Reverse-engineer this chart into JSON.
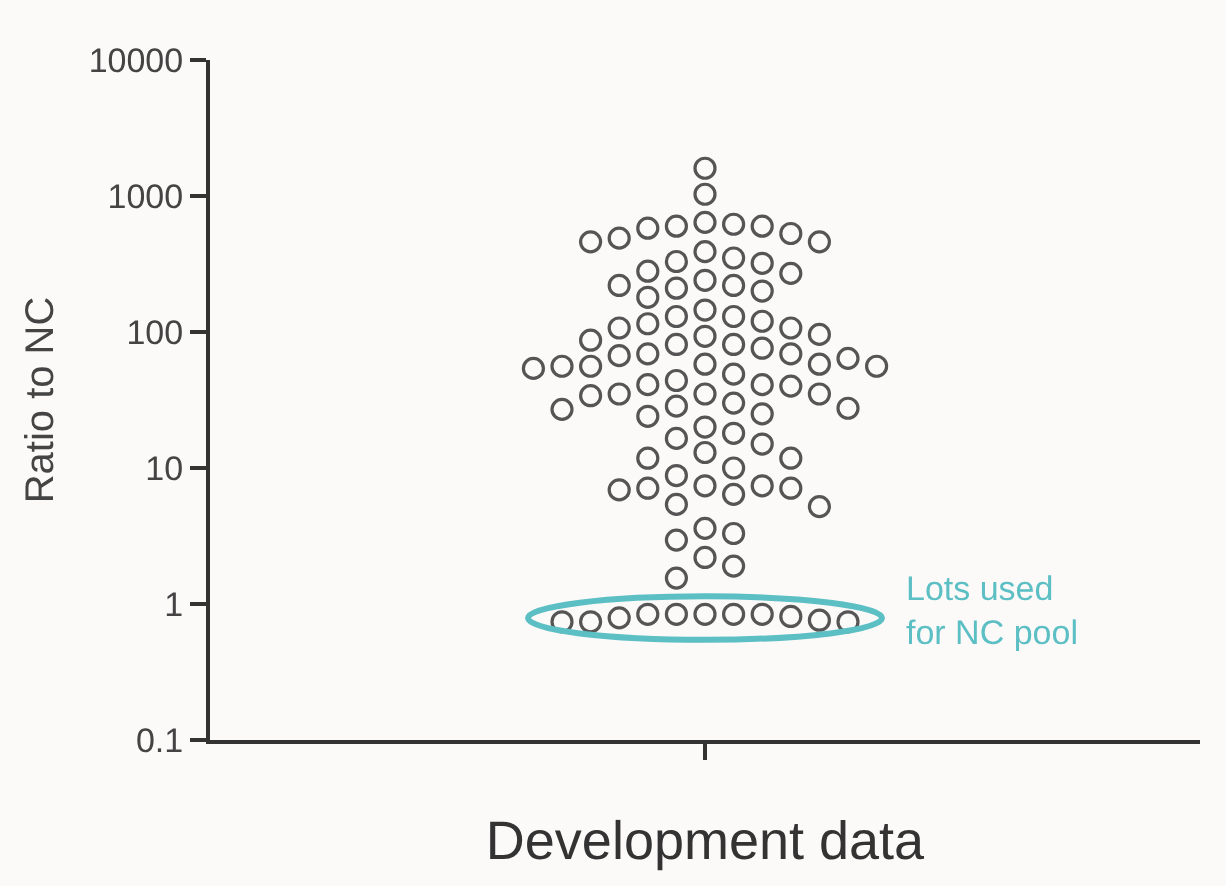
{
  "chart_data": {
    "type": "scatter",
    "xlabel": "Development data",
    "ylabel": "Ratio to NC",
    "categories": [
      null
    ],
    "log": "y",
    "ylim": [
      0.1,
      10000
    ],
    "yticks": [
      0.1,
      1,
      10,
      100,
      1000,
      10000
    ],
    "grid": false,
    "marker": "circle",
    "series": [
      {
        "color": "#555555",
        "x": [
          null,
          null,
          null,
          null,
          null,
          null,
          null,
          null,
          null,
          null,
          null,
          null,
          null,
          null,
          null,
          null,
          null,
          null,
          null,
          null,
          null,
          null,
          null,
          null,
          null,
          null,
          null,
          null,
          null,
          null,
          null,
          null,
          null,
          null,
          null,
          null,
          null,
          null,
          null,
          null,
          null,
          null,
          null,
          null,
          null,
          null,
          null,
          null,
          null,
          null,
          null,
          null,
          null,
          null,
          null,
          null,
          null,
          null,
          null,
          null,
          null,
          null,
          null,
          null,
          null,
          null,
          null,
          null,
          null,
          null,
          null,
          null,
          null,
          null,
          null,
          null,
          null,
          null,
          null,
          null,
          null,
          null,
          null,
          null,
          null,
          null,
          null,
          null,
          null,
          null,
          null,
          null,
          null,
          null,
          null
        ],
        "values": [
          1600,
          1030,
          620,
          600,
          640,
          600,
          580,
          490,
          460,
          460,
          530,
          350,
          320,
          280,
          330,
          390,
          220,
          210,
          180,
          270,
          200,
          220,
          240,
          130,
          120,
          107,
          96,
          145,
          87,
          93,
          107,
          115,
          130,
          81,
          76,
          69,
          64,
          69,
          81,
          67,
          58,
          56,
          54,
          49,
          56,
          56,
          58,
          41,
          40,
          41,
          44,
          35,
          34,
          35,
          35,
          25,
          28.5,
          27,
          27.5,
          30,
          24,
          20,
          16.5,
          15,
          18,
          13,
          11.8,
          11.8,
          8.8,
          10,
          6.4,
          7.1,
          7.4,
          7.4,
          7.1,
          6.9,
          5.4,
          5.2,
          3.6,
          2.95,
          3.3,
          2.2,
          1.9,
          1.55,
          0.84,
          0.84,
          0.84,
          0.79,
          0.74,
          0.74,
          0.74,
          0.76,
          0.81,
          0.84,
          0.84
        ]
      }
    ],
    "annotations": [
      "Lots used\nfor NC pool"
    ]
  }
}
